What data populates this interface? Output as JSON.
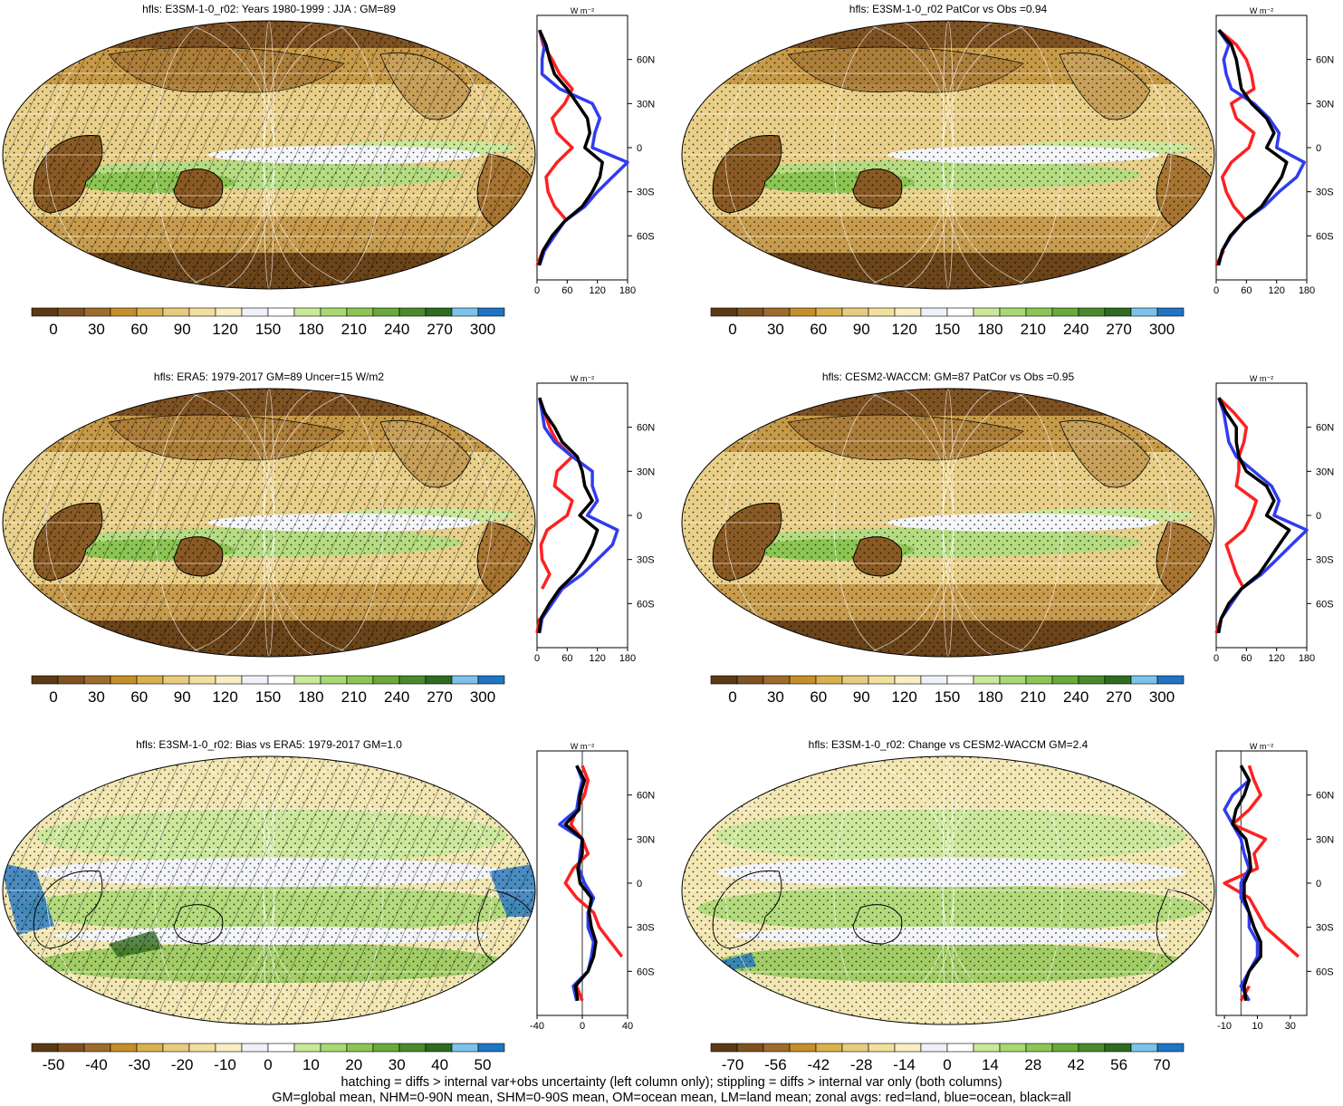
{
  "figure": {
    "footnote_line1": "hatching = diffs > internal var+obs uncertainty (left column only); stippling = diffs > internal var only (both columns)",
    "footnote_line2": "GM=global mean, NHM=0-90N mean, SHM=0-90S mean, OM=ocean mean, LM=land mean; zonal avgs: red=land, blue=ocean, black=all"
  },
  "colors": {
    "land_zonal": "#ff2020",
    "ocean_zonal": "#2f3cf0",
    "all_zonal": "#000000",
    "abs_palette": [
      "#5c3a16",
      "#7f5222",
      "#9d6c2c",
      "#c48f2a",
      "#d9b04d",
      "#e7cc7f",
      "#f1df9e",
      "#f8edc4",
      "#eef1f7",
      "#ffffff",
      "#c9e89a",
      "#a8d872",
      "#8cc553",
      "#6aa93a",
      "#4a8a2c",
      "#2f6b21",
      "#7cc2ec",
      "#1f74c3"
    ],
    "diff_palette": [
      "#5c3a16",
      "#7f5222",
      "#9d6c2c",
      "#c48f2a",
      "#d9b04d",
      "#e7cc7f",
      "#f1df9e",
      "#f8edc4",
      "#eef1f7",
      "#ffffff",
      "#c9e89a",
      "#a8d872",
      "#8cc553",
      "#6aa93a",
      "#4a8a2c",
      "#2f6b21",
      "#7cc2ec",
      "#1f74c3"
    ]
  },
  "chart_data": [
    {
      "type": "heatmap",
      "title": "hfls: E3SM-1-0_r02: Years 1980-1999 : JJA : GM=89",
      "colorbar_labels": [
        "0",
        "30",
        "60",
        "90",
        "120",
        "150",
        "180",
        "210",
        "240",
        "270",
        "300"
      ],
      "hatched": true,
      "zonal_mean": {
        "unit": "W m-2",
        "x_ticks": [
          "0",
          "60",
          "120",
          "180"
        ],
        "xlim": [
          0,
          180
        ],
        "lat_ticks": [
          "60N",
          "30N",
          "0",
          "30S",
          "60S"
        ],
        "lat": [
          80,
          70,
          60,
          50,
          40,
          30,
          20,
          10,
          0,
          -10,
          -20,
          -30,
          -40,
          -50,
          -60,
          -70,
          -80
        ],
        "land": [
          5,
          12,
          30,
          45,
          70,
          55,
          30,
          40,
          70,
          40,
          18,
          22,
          35,
          60,
          null,
          12,
          0
        ],
        "ocean": [
          5,
          15,
          10,
          10,
          45,
          110,
          125,
          115,
          110,
          180,
          150,
          120,
          95,
          55,
          35,
          15,
          5
        ],
        "all": [
          5,
          18,
          25,
          35,
          60,
          80,
          100,
          105,
          95,
          130,
          125,
          110,
          90,
          55,
          30,
          12,
          4
        ]
      }
    },
    {
      "type": "heatmap",
      "title": "hfls: E3SM-1-0_r02 PatCor vs Obs =0.94",
      "colorbar_labels": [
        "0",
        "30",
        "60",
        "90",
        "120",
        "150",
        "180",
        "210",
        "240",
        "270",
        "300"
      ],
      "hatched": false,
      "zonal_mean": {
        "unit": "W m-2",
        "x_ticks": [
          "0",
          "60",
          "120",
          "180"
        ],
        "xlim": [
          0,
          180
        ],
        "lat_ticks": [
          "60N",
          "30N",
          "0",
          "30S",
          "60S"
        ],
        "lat": [
          80,
          70,
          60,
          50,
          40,
          30,
          20,
          10,
          0,
          -10,
          -20,
          -30,
          -40,
          -50,
          -60,
          -70,
          -80
        ],
        "land": [
          5,
          40,
          60,
          70,
          75,
          30,
          40,
          75,
          65,
          30,
          12,
          20,
          35,
          60,
          null,
          15,
          0
        ],
        "ocean": [
          5,
          25,
          15,
          20,
          30,
          75,
          105,
          125,
          120,
          175,
          160,
          125,
          95,
          55,
          30,
          12,
          5
        ],
        "all": [
          5,
          30,
          40,
          45,
          50,
          70,
          100,
          115,
          100,
          140,
          130,
          110,
          90,
          55,
          28,
          12,
          4
        ]
      }
    },
    {
      "type": "heatmap",
      "title": "hfls: ERA5: 1979-2017 GM=89 Uncer=15 W/m2",
      "colorbar_labels": [
        "0",
        "30",
        "60",
        "90",
        "120",
        "150",
        "180",
        "210",
        "240",
        "270",
        "300"
      ],
      "hatched": true,
      "zonal_mean": {
        "unit": "W m-2",
        "x_ticks": [
          "0",
          "60",
          "120",
          "180"
        ],
        "xlim": [
          0,
          180
        ],
        "lat_ticks": [
          "60N",
          "30N",
          "0",
          "30S",
          "60S"
        ],
        "lat": [
          80,
          70,
          60,
          50,
          40,
          30,
          20,
          10,
          0,
          -10,
          -20,
          -30,
          -40,
          -50,
          -60,
          -70,
          -80
        ],
        "land": [
          5,
          15,
          25,
          40,
          70,
          40,
          35,
          70,
          60,
          20,
          8,
          10,
          25,
          10,
          null,
          5,
          0
        ],
        "ocean": [
          5,
          10,
          15,
          35,
          70,
          110,
          110,
          120,
          100,
          160,
          150,
          120,
          90,
          50,
          30,
          10,
          5
        ],
        "all": [
          5,
          15,
          35,
          50,
          80,
          90,
          95,
          110,
          85,
          120,
          110,
          95,
          75,
          45,
          25,
          8,
          4
        ]
      }
    },
    {
      "type": "heatmap",
      "title": "hfls: CESM2-WACCM: GM=87 PatCor vs Obs =0.95",
      "colorbar_labels": [
        "0",
        "30",
        "60",
        "90",
        "120",
        "150",
        "180",
        "210",
        "240",
        "270",
        "300"
      ],
      "hatched": false,
      "zonal_mean": {
        "unit": "W m-2",
        "x_ticks": [
          "0",
          "60",
          "120",
          "180"
        ],
        "xlim": [
          0,
          180
        ],
        "lat_ticks": [
          "60N",
          "30N",
          "0",
          "30S",
          "60S"
        ],
        "lat": [
          80,
          70,
          60,
          50,
          40,
          30,
          20,
          10,
          0,
          -10,
          -20,
          -30,
          -40,
          -50,
          -60,
          -70,
          -80
        ],
        "land": [
          5,
          35,
          60,
          55,
          45,
          45,
          40,
          80,
          70,
          55,
          20,
          30,
          40,
          55,
          null,
          10,
          0
        ],
        "ocean": [
          5,
          15,
          20,
          25,
          40,
          75,
          110,
          125,
          115,
          180,
          150,
          120,
          90,
          50,
          30,
          10,
          5
        ],
        "all": [
          5,
          20,
          40,
          40,
          45,
          60,
          100,
          115,
          100,
          145,
          125,
          105,
          85,
          50,
          25,
          10,
          4
        ]
      }
    },
    {
      "type": "heatmap",
      "title": "hfls: E3SM-1-0_r02: Bias vs ERA5: 1979-2017 GM=1.0",
      "colorbar_labels": [
        "-50",
        "-40",
        "-30",
        "-20",
        "-10",
        "0",
        "10",
        "20",
        "30",
        "40",
        "50"
      ],
      "hatched": true,
      "zonal_mean": {
        "unit": "W m-2",
        "x_ticks": [
          "-40",
          "0",
          "40"
        ],
        "xlim": [
          -40,
          40
        ],
        "lat_ticks": [
          "60N",
          "30N",
          "0",
          "30S",
          "60S"
        ],
        "lat": [
          80,
          70,
          60,
          50,
          40,
          30,
          20,
          10,
          0,
          -10,
          -20,
          -30,
          -40,
          -50,
          -60,
          -70,
          -80
        ],
        "land": [
          0,
          5,
          2,
          -5,
          -10,
          0,
          5,
          -8,
          -15,
          -5,
          10,
          15,
          25,
          35,
          null,
          -5,
          0
        ],
        "ocean": [
          -5,
          0,
          -3,
          -5,
          -20,
          0,
          -2,
          -3,
          2,
          10,
          5,
          5,
          10,
          8,
          5,
          -8,
          -5
        ],
        "all": [
          -5,
          2,
          -2,
          -3,
          -15,
          0,
          0,
          -4,
          -2,
          8,
          6,
          8,
          12,
          10,
          5,
          -6,
          -4
        ]
      }
    },
    {
      "type": "heatmap",
      "title": "hfls: E3SM-1-0_r02: Change vs CESM2-WACCM GM=2.4",
      "colorbar_labels": [
        "-70",
        "-56",
        "-42",
        "-28",
        "-14",
        "0",
        "14",
        "28",
        "42",
        "56",
        "70"
      ],
      "hatched": false,
      "zonal_mean": {
        "unit": "W m-2",
        "x_ticks": [
          "-10",
          "10",
          "30"
        ],
        "xlim": [
          -15,
          40
        ],
        "lat_ticks": [
          "60N",
          "30N",
          "0",
          "30S",
          "60S"
        ],
        "lat": [
          80,
          70,
          60,
          50,
          40,
          30,
          20,
          10,
          0,
          -10,
          -20,
          -30,
          -40,
          -50,
          -60,
          -70,
          -80
        ],
        "land": [
          5,
          8,
          12,
          5,
          -5,
          15,
          8,
          10,
          -10,
          5,
          10,
          15,
          25,
          35,
          null,
          5,
          0
        ],
        "ocean": [
          0,
          5,
          -5,
          -10,
          -5,
          0,
          2,
          5,
          0,
          0,
          5,
          5,
          10,
          10,
          5,
          0,
          5
        ],
        "all": [
          0,
          5,
          2,
          -3,
          -5,
          3,
          5,
          6,
          2,
          2,
          5,
          8,
          12,
          12,
          5,
          2,
          3
        ]
      }
    }
  ]
}
